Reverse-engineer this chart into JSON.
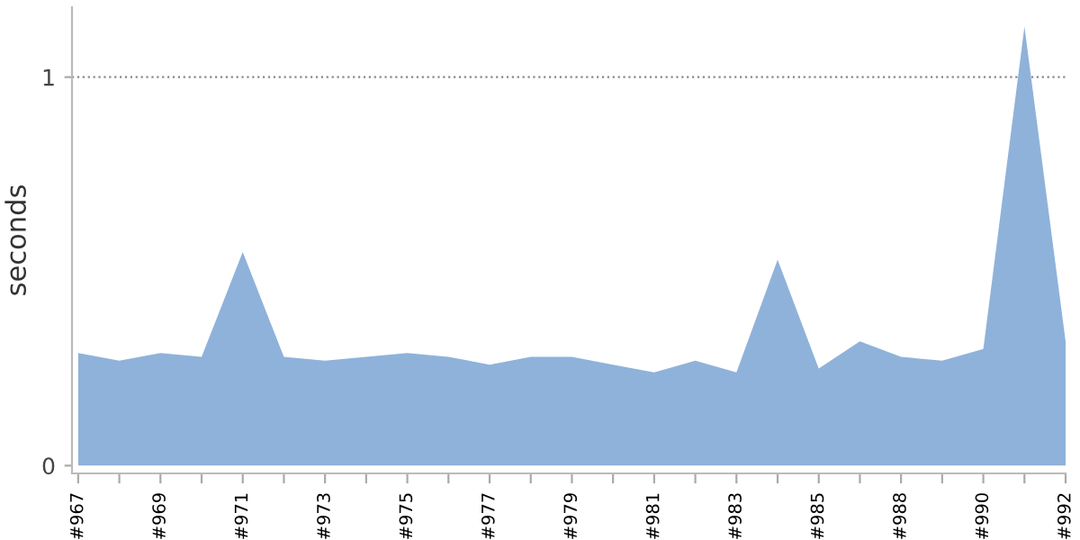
{
  "chart_data": {
    "type": "area",
    "ylabel": "seconds",
    "categories": [
      "#967",
      null,
      "#969",
      null,
      "#971",
      null,
      "#973",
      null,
      "#975",
      null,
      "#977",
      null,
      "#979",
      null,
      "#981",
      null,
      "#983",
      null,
      "#985",
      null,
      "#988",
      null,
      "#990",
      null,
      "#992"
    ],
    "series": [
      {
        "color": "#8fb2da",
        "values": [
          0.29,
          0.27,
          0.29,
          0.28,
          0.55,
          0.28,
          0.27,
          0.28,
          0.29,
          0.28,
          0.26,
          0.28,
          0.28,
          0.26,
          0.24,
          0.27,
          0.24,
          0.53,
          0.25,
          0.32,
          0.28,
          0.27,
          0.3,
          1.13,
          0.32
        ]
      }
    ],
    "ylim": [
      -0.02,
      1.18
    ],
    "yticks": [
      0,
      1
    ],
    "ref_lines": [
      {
        "axis": "y",
        "value": 1,
        "color": "#888888",
        "line_style": "dotted"
      }
    ]
  }
}
